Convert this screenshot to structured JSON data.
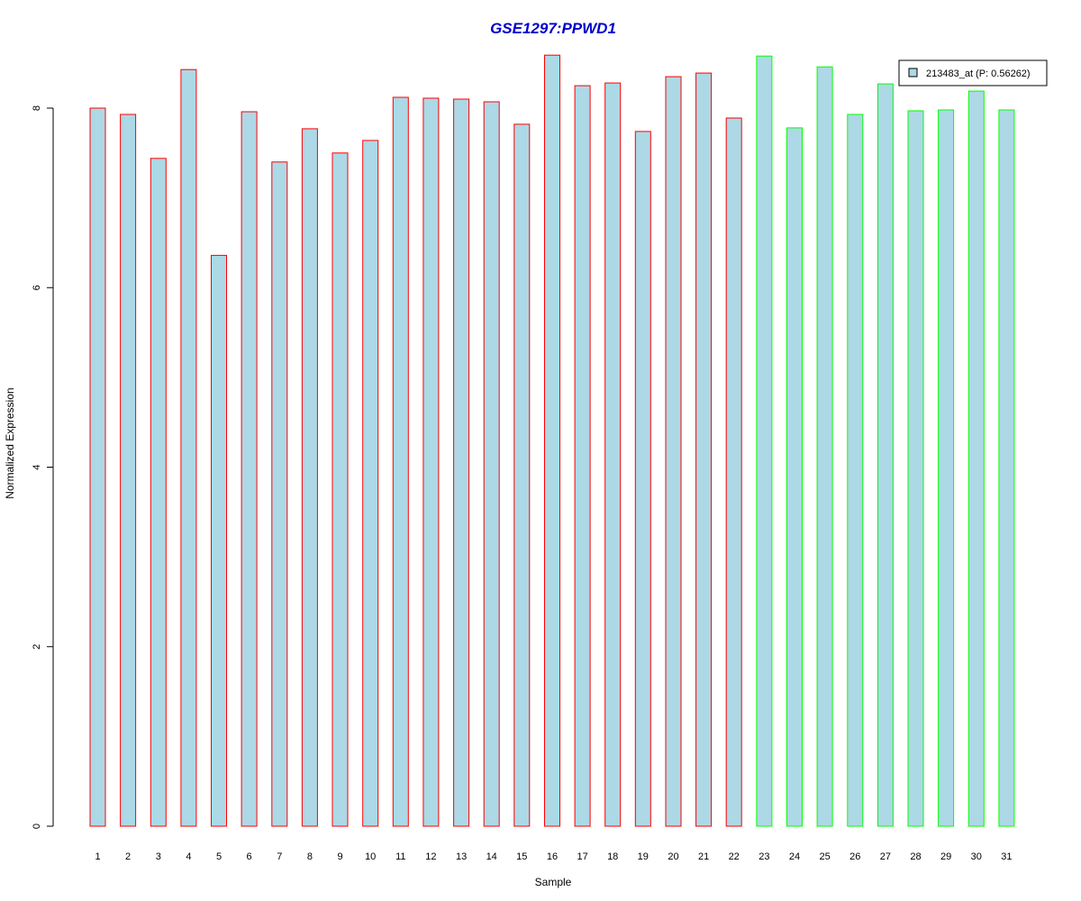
{
  "chart_data": {
    "type": "bar",
    "title": "GSE1297:PPWD1",
    "xlabel": "Sample",
    "ylabel": "Normalized Expression",
    "categories": [
      "1",
      "2",
      "3",
      "4",
      "5",
      "6",
      "7",
      "8",
      "9",
      "10",
      "11",
      "12",
      "13",
      "14",
      "15",
      "16",
      "17",
      "18",
      "19",
      "20",
      "21",
      "22",
      "23",
      "24",
      "25",
      "26",
      "27",
      "28",
      "29",
      "30",
      "31"
    ],
    "values": [
      8.0,
      7.93,
      7.44,
      8.43,
      6.36,
      7.96,
      7.4,
      7.77,
      7.5,
      7.64,
      8.12,
      8.11,
      8.1,
      8.07,
      7.82,
      8.59,
      8.25,
      8.28,
      7.74,
      8.35,
      8.39,
      7.89,
      8.58,
      7.78,
      8.46,
      7.93,
      8.27,
      7.97,
      7.98,
      8.19,
      7.98
    ],
    "groups": [
      1,
      1,
      1,
      1,
      1,
      1,
      1,
      1,
      1,
      1,
      1,
      1,
      1,
      1,
      1,
      1,
      1,
      1,
      1,
      1,
      1,
      1,
      2,
      2,
      2,
      2,
      2,
      2,
      2,
      2,
      2
    ],
    "ylim": [
      0,
      8.6
    ],
    "yticks": [
      "0",
      "2",
      "4",
      "6",
      "8"
    ],
    "grid": false,
    "legend": {
      "entries": [
        "213483_at (P: 0.56262)"
      ],
      "placement": "top-right"
    },
    "colors": {
      "fill": "#add8e6",
      "group1_border": "#ff0000",
      "group2_border": "#00ff00",
      "title": "#0000cd"
    }
  }
}
